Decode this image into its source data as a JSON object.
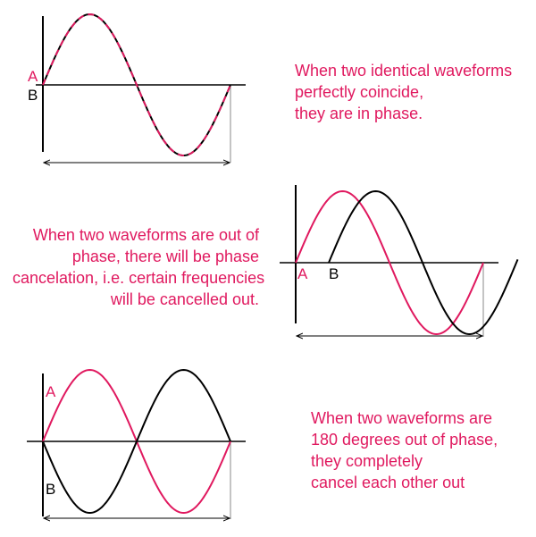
{
  "colors": {
    "wave_a": "#e0195f",
    "wave_b": "#000000",
    "axes": "#000000",
    "guides": "#888888",
    "caption": "#e0195f"
  },
  "diagrams": [
    {
      "id": "in-phase",
      "labels": {
        "a": "A",
        "b": "B"
      },
      "caption_lines": [
        "When two identical waveforms",
        "perfectly coincide,",
        "they are in phase."
      ]
    },
    {
      "id": "out-of-phase",
      "labels": {
        "a": "A",
        "b": "B"
      },
      "caption_lines": [
        "When two waveforms are out of",
        "phase, there will be phase",
        "cancelation, i.e. certain frequencies",
        "will be cancelled out."
      ]
    },
    {
      "id": "opposite-phase",
      "labels": {
        "a": "A",
        "b": "B"
      },
      "caption_lines": [
        "When two waveforms are",
        "180 degrees out of phase,",
        "they completely",
        "cancel each other out"
      ]
    }
  ]
}
